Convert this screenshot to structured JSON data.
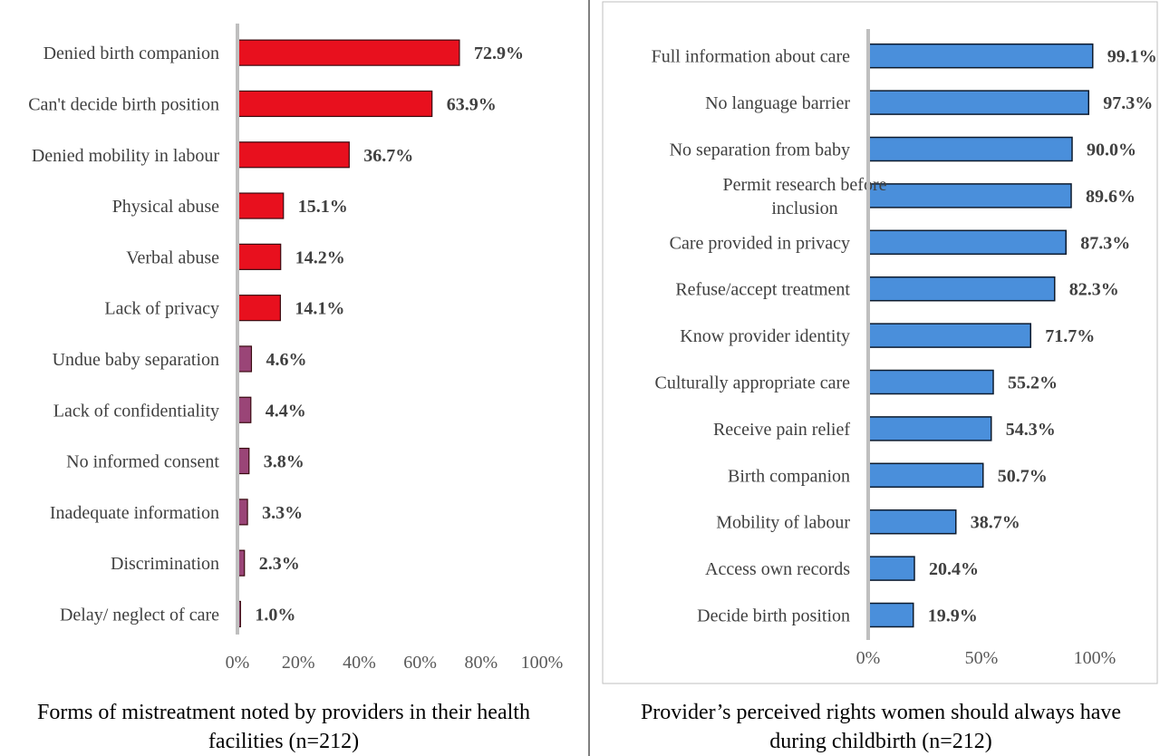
{
  "chart_data": [
    {
      "type": "bar",
      "orientation": "horizontal",
      "caption": "Forms of mistreatment noted by providers in their health facilities (n=212)",
      "caption_lines": [
        "Forms of mistreatment noted by providers in their health",
        "facilities (n=212)"
      ],
      "categories": [
        "Denied birth companion",
        "Can't decide birth position",
        "Denied mobility in labour",
        "Physical abuse",
        "Verbal abuse",
        "Lack of privacy",
        "Undue baby separation",
        "Lack of confidentiality",
        "No informed consent",
        "Inadequate information",
        "Discrimination",
        "Delay/ neglect of care"
      ],
      "values": [
        72.9,
        63.9,
        36.7,
        15.1,
        14.2,
        14.1,
        4.6,
        4.4,
        3.8,
        3.3,
        2.3,
        1.0
      ],
      "value_labels": [
        "72.9%",
        "63.9%",
        "36.7%",
        "15.1%",
        "14.2%",
        "14.1%",
        "4.6%",
        "4.4%",
        "3.8%",
        "3.3%",
        "2.3%",
        "1.0%"
      ],
      "xlim": [
        0,
        100
      ],
      "x_ticks": [
        0,
        20,
        40,
        60,
        80,
        100
      ],
      "x_tick_labels": [
        "0%",
        "20%",
        "40%",
        "60%",
        "80%",
        "100%"
      ],
      "colors": {
        "high": "#e8101e",
        "low": "#9a4577",
        "edge": "#3a0a10"
      },
      "grid": false
    },
    {
      "type": "bar",
      "orientation": "horizontal",
      "caption": "Provider’s perceived rights women should always have during childbirth (n=212)",
      "caption_lines": [
        "Provider’s perceived rights women should always have",
        "during childbirth (n=212)"
      ],
      "categories": [
        "Full information about care",
        "No language barrier",
        "No separation from baby",
        "Permit research before inclusion",
        "Care provided in privacy",
        "Refuse/accept treatment",
        "Know provider identity",
        "Culturally appropriate care",
        "Receive pain relief",
        "Birth companion",
        "Mobility of labour",
        "Access own records",
        "Decide birth position"
      ],
      "category_lines": [
        [
          "Full information about care"
        ],
        [
          "No language barrier"
        ],
        [
          "No separation from baby"
        ],
        [
          "Permit research before",
          "inclusion"
        ],
        [
          "Care provided in privacy"
        ],
        [
          "Refuse/accept treatment"
        ],
        [
          "Know provider identity"
        ],
        [
          "Culturally appropriate care"
        ],
        [
          "Receive pain relief"
        ],
        [
          "Birth companion"
        ],
        [
          "Mobility of labour"
        ],
        [
          "Access own records"
        ],
        [
          "Decide birth position"
        ]
      ],
      "values": [
        99.1,
        97.3,
        90.0,
        89.6,
        87.3,
        82.3,
        71.7,
        55.2,
        54.3,
        50.7,
        38.7,
        20.4,
        19.9
      ],
      "value_labels": [
        "99.1%",
        "97.3%",
        "90.0%",
        "89.6%",
        "87.3%",
        "82.3%",
        "71.7%",
        "55.2%",
        "54.3%",
        "50.7%",
        "38.7%",
        "20.4%",
        "19.9%"
      ],
      "xlim": [
        0,
        100
      ],
      "x_ticks": [
        0,
        50,
        100
      ],
      "x_tick_labels": [
        "0%",
        "50%",
        "100%"
      ],
      "colors": {
        "bar": "#4a8fdb",
        "edge": "#0d1b2e"
      },
      "grid": false
    }
  ]
}
